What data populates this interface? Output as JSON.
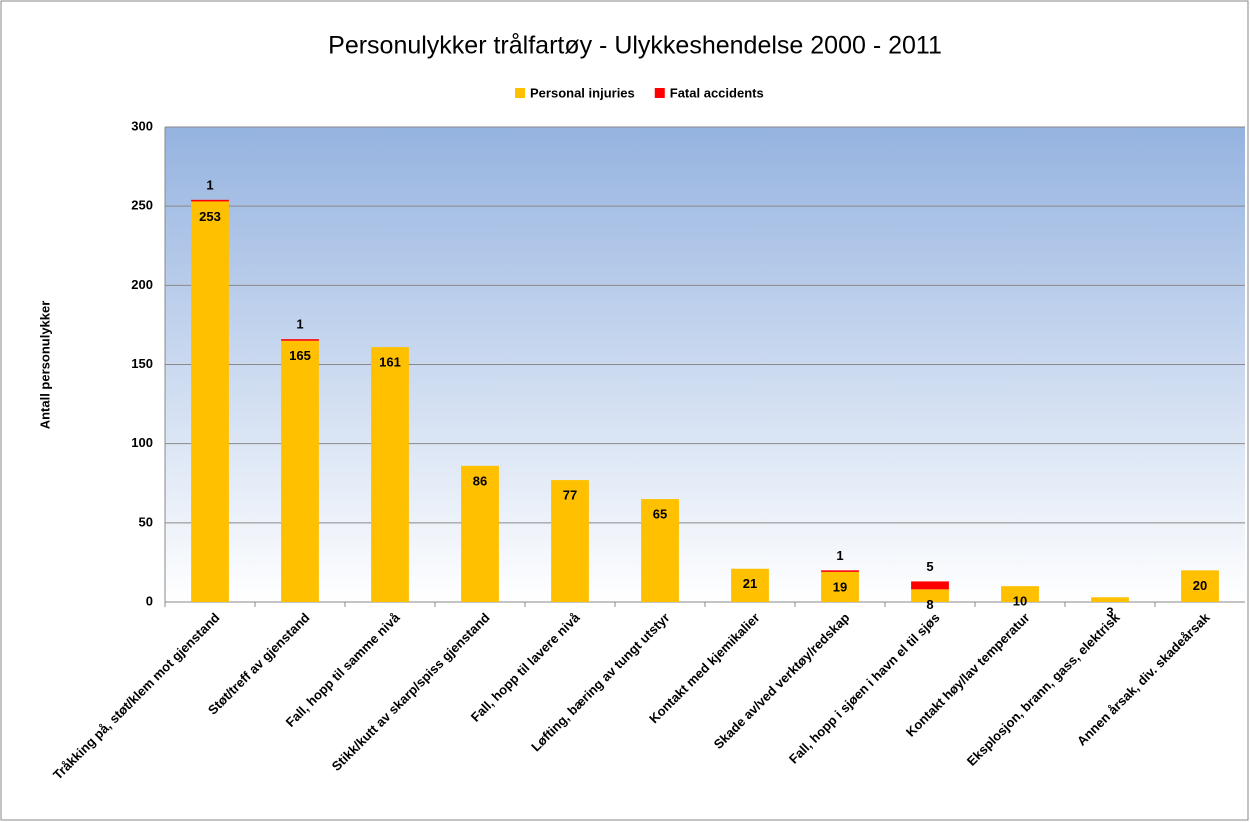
{
  "chart_data": {
    "type": "stacked_bar",
    "title": "Personulykker trålfartøy - Ulykkeshendelse 2000 - 2011",
    "y_label": "Antall personulykker",
    "categories": [
      "Tråkking på, støt/klem mot gjenstand",
      "Støt/treff av gjenstand",
      "Fall, hopp til samme nivå",
      "Stikk/kutt av skarp/spiss gjenstand",
      "Fall, hopp til lavere nivå",
      "Løfting, bæring av tungt utstyr",
      "Kontakt med kjemikalier",
      "Skade av/ved verktøy/redskap",
      "Fall, hopp i sjøen i havn el til sjøs",
      "Kontakt høy/lav temperatur",
      "Eksplosjon, brann, gass, elektrisk",
      "Annen årsak, div. skadeårsak"
    ],
    "series": [
      {
        "name": "Personal injuries",
        "color": "#ffc000",
        "values": [
          253,
          165,
          161,
          86,
          77,
          65,
          21,
          19,
          8,
          10,
          3,
          20
        ]
      },
      {
        "name": "Fatal accidents",
        "color": "#ff0000",
        "values": [
          1,
          1,
          0,
          0,
          0,
          0,
          0,
          1,
          5,
          0,
          0,
          0
        ]
      }
    ],
    "ylim": [
      0,
      300
    ],
    "yticks": [
      0,
      50,
      100,
      150,
      200,
      250,
      300
    ],
    "grid": true,
    "legend": "top"
  }
}
